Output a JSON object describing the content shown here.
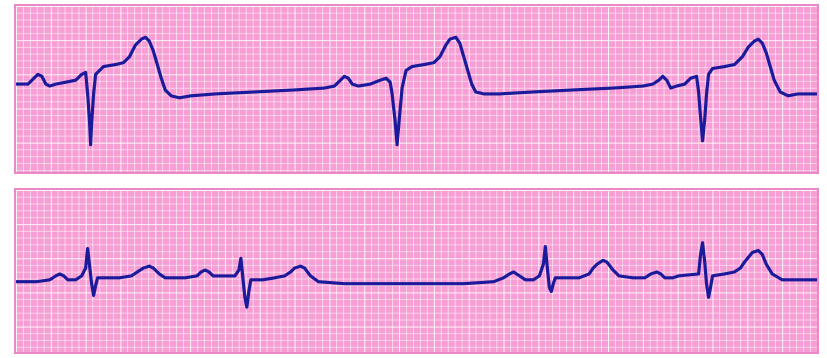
{
  "colors": {
    "page_background": "#ffffff",
    "grid_background": "#f79ed5",
    "grid_line": "#ffffff",
    "strip_border": "#e98ac7",
    "trace": "#1a1a9a"
  },
  "strips": [
    {
      "id": "top",
      "description_label": ""
    },
    {
      "id": "bottom",
      "description_label": ""
    }
  ]
}
